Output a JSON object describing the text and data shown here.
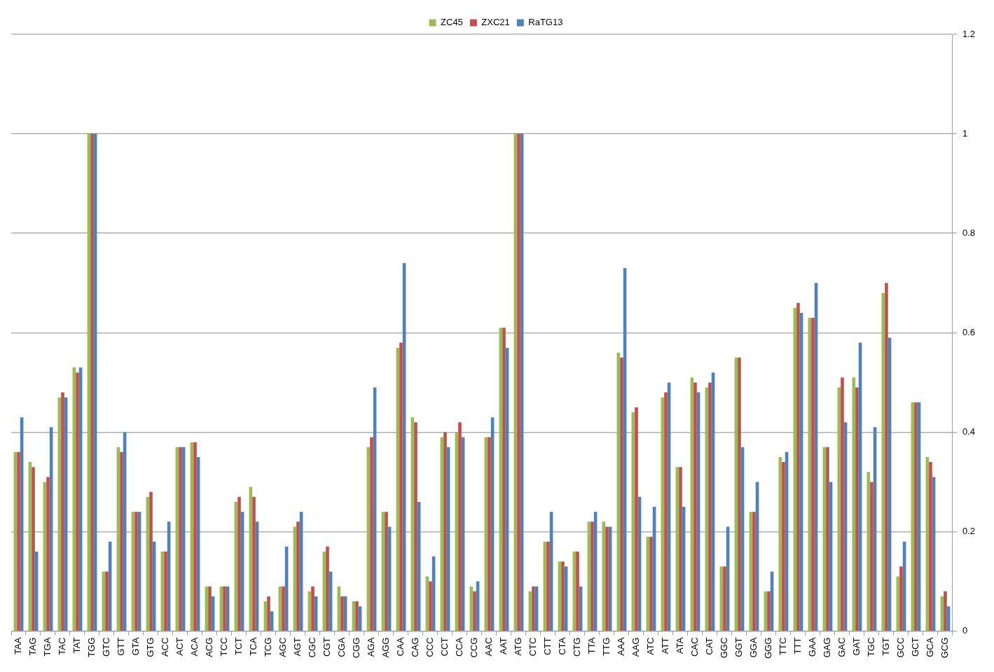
{
  "chart_data": {
    "type": "bar",
    "categories": [
      "TAA",
      "TAG",
      "TGA",
      "TAC",
      "TAT",
      "TGG",
      "GTC",
      "GTT",
      "GTA",
      "GTG",
      "ACC",
      "ACT",
      "ACA",
      "ACG",
      "TCC",
      "TCT",
      "TCA",
      "TCG",
      "AGC",
      "AGT",
      "CGC",
      "CGT",
      "CGA",
      "CGG",
      "AGA",
      "AGG",
      "CAA",
      "CAG",
      "CCC",
      "CCT",
      "CCA",
      "CCG",
      "AAC",
      "AAT",
      "ATG",
      "CTC",
      "CTT",
      "CTA",
      "CTG",
      "TTA",
      "TTG",
      "AAA",
      "AAG",
      "ATC",
      "ATT",
      "ATA",
      "CAC",
      "CAT",
      "GGC",
      "GGT",
      "GGA",
      "GGG",
      "TTC",
      "TTT",
      "GAA",
      "GAG",
      "GAC",
      "GAT",
      "TGC",
      "TGT",
      "GCC",
      "GCT",
      "GCA",
      "GCG"
    ],
    "series": [
      {
        "name": "ZC45",
        "color": "#9bbb59",
        "values": [
          0.36,
          0.34,
          0.3,
          0.47,
          0.53,
          1,
          0.12,
          0.37,
          0.24,
          0.27,
          0.16,
          0.37,
          0.38,
          0.09,
          0.09,
          0.26,
          0.29,
          0.06,
          0.09,
          0.21,
          0.08,
          0.16,
          0.09,
          0.06,
          0.37,
          0.24,
          0.57,
          0.43,
          0.11,
          0.39,
          0.4,
          0.09,
          0.39,
          0.61,
          1,
          0.08,
          0.18,
          0.14,
          0.16,
          0.22,
          0.22,
          0.56,
          0.44,
          0.19,
          0.47,
          0.33,
          0.51,
          0.49,
          0.13,
          0.55,
          0.24,
          0.08,
          0.35,
          0.65,
          0.63,
          0.37,
          0.49,
          0.51,
          0.32,
          0.68,
          0.11,
          0.46,
          0.35,
          0.07
        ]
      },
      {
        "name": "ZXC21",
        "color": "#c0504d",
        "values": [
          0.36,
          0.33,
          0.31,
          0.48,
          0.52,
          1,
          0.12,
          0.36,
          0.24,
          0.28,
          0.16,
          0.37,
          0.38,
          0.09,
          0.09,
          0.27,
          0.27,
          0.07,
          0.09,
          0.22,
          0.09,
          0.17,
          0.07,
          0.06,
          0.39,
          0.24,
          0.58,
          0.42,
          0.1,
          0.4,
          0.42,
          0.08,
          0.39,
          0.61,
          1,
          0.09,
          0.18,
          0.14,
          0.16,
          0.22,
          0.21,
          0.55,
          0.45,
          0.19,
          0.48,
          0.33,
          0.5,
          0.5,
          0.13,
          0.55,
          0.24,
          0.08,
          0.34,
          0.66,
          0.63,
          0.37,
          0.51,
          0.49,
          0.3,
          0.7,
          0.13,
          0.46,
          0.34,
          0.08
        ]
      },
      {
        "name": "RaTG13",
        "color": "#4f81bd",
        "values": [
          0.43,
          0.16,
          0.41,
          0.47,
          0.53,
          1,
          0.18,
          0.4,
          0.24,
          0.18,
          0.22,
          0.37,
          0.35,
          0.07,
          0.09,
          0.24,
          0.22,
          0.04,
          0.17,
          0.24,
          0.07,
          0.12,
          0.07,
          0.05,
          0.49,
          0.21,
          0.74,
          0.26,
          0.15,
          0.37,
          0.39,
          0.1,
          0.43,
          0.57,
          1,
          0.09,
          0.24,
          0.13,
          0.09,
          0.24,
          0.21,
          0.73,
          0.27,
          0.25,
          0.5,
          0.25,
          0.48,
          0.52,
          0.21,
          0.37,
          0.3,
          0.12,
          0.36,
          0.64,
          0.7,
          0.3,
          0.42,
          0.58,
          0.41,
          0.59,
          0.18,
          0.46,
          0.31,
          0.05
        ]
      }
    ],
    "ylim": [
      0,
      1.2
    ],
    "yticks": [
      0,
      0.2,
      0.4,
      0.6,
      0.8,
      1,
      1.2
    ],
    "grid": "y",
    "legend": "top"
  }
}
